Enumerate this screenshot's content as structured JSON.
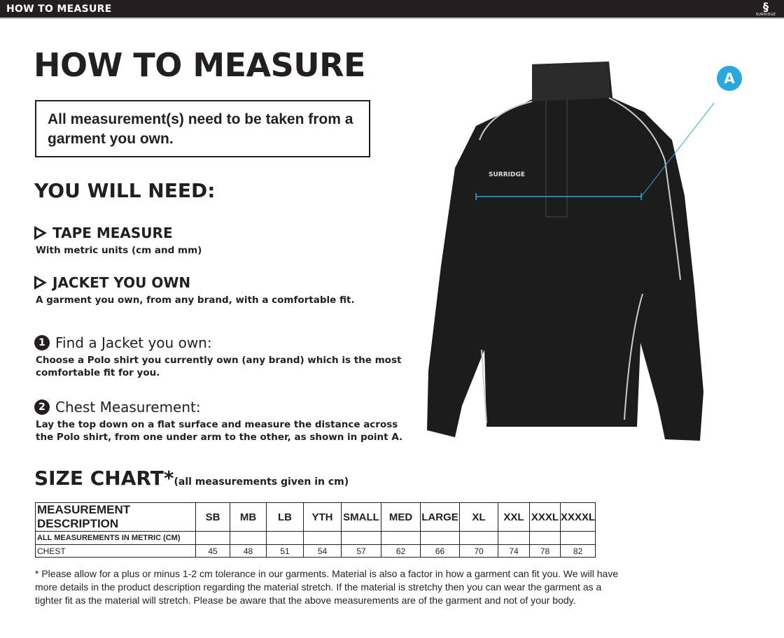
{
  "header": {
    "title": "HOW TO MEASURE",
    "logo_text": "SURRIDGE"
  },
  "main": {
    "title": "HOW TO MEASURE",
    "notice": "All measurement(s) need to be taken from a garment you own.",
    "you_will_need": "YOU WILL NEED:",
    "needs": [
      {
        "title": "TAPE MEASURE",
        "desc": "With metric units (cm and mm)"
      },
      {
        "title": "JACKET YOU OWN",
        "desc": "A garment you own, from any brand, with a comfortable fit."
      }
    ],
    "steps": [
      {
        "num": "1",
        "title": "Find a Jacket you own:",
        "desc": "Choose a Polo shirt you currently own (any brand) which is the most comfortable fit for you."
      },
      {
        "num": "2",
        "title": "Chest Measurement:",
        "desc": "Lay the top down on a flat surface and measure the distance across the Polo shirt, from one under arm to the other, as shown in point A."
      }
    ],
    "point_label": "A",
    "size_chart_title": "SIZE CHART*",
    "size_chart_note": "(all measurements given in cm)"
  },
  "table": {
    "header_label": "MEASUREMENT DESCRIPTION",
    "sizes": [
      "SB",
      "MB",
      "LB",
      "YTH",
      "SMALL",
      "MED",
      "LARGE",
      "XL",
      "XXL",
      "XXXL",
      "XXXXL"
    ],
    "metric_label": "ALL MEASUREMENTS IN METRIC (CM)",
    "rows": [
      {
        "label": "CHEST",
        "values": [
          "45",
          "48",
          "51",
          "54",
          "57",
          "62",
          "66",
          "70",
          "74",
          "78",
          "82"
        ]
      }
    ]
  },
  "footnote": "* Please allow for a plus or minus 1-2 cm tolerance in our garments. Material is also a factor in how a garment can fit you. We will have more details in the product description regarding the material stretch.  If the material is stretchy then you can wear the garment as a tighter fit as the material will stretch.  Please be aware that the above measurements are of the garment and not of your body.",
  "colors": {
    "accent": "#29a8e0",
    "text": "#231f20",
    "topbar": "#231f20"
  }
}
